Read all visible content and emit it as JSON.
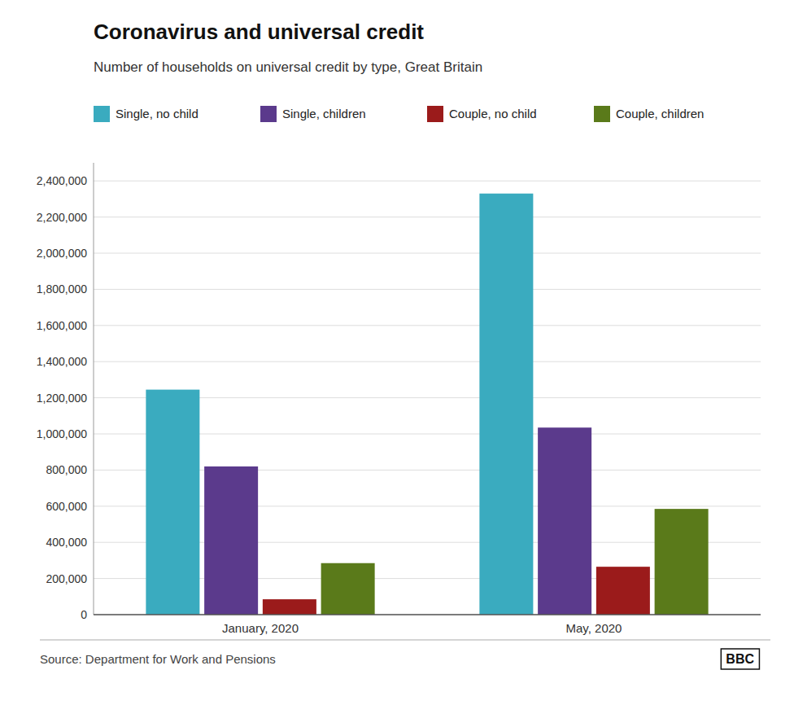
{
  "chart_data": {
    "type": "bar",
    "title": "Coronavirus and universal credit",
    "subtitle": "Number of households on universal credit by type, Great Britain",
    "categories": [
      "January, 2020",
      "May, 2020"
    ],
    "series": [
      {
        "name": "Single, no child",
        "color": "#3aabbf",
        "values": [
          1245000,
          2330000
        ]
      },
      {
        "name": "Single, children",
        "color": "#5b3a8c",
        "values": [
          820000,
          1035000
        ]
      },
      {
        "name": "Couple, no child",
        "color": "#9b1b1b",
        "values": [
          85000,
          265000
        ]
      },
      {
        "name": "Couple, children",
        "color": "#5a7a1a",
        "values": [
          285000,
          585000
        ]
      }
    ],
    "ylim": [
      0,
      2500000
    ],
    "yticks": [
      0,
      {
        "value": 200000,
        "label": "200,000"
      },
      {
        "value": 400000,
        "label": "400,000"
      },
      {
        "value": 600000,
        "label": "600,000"
      },
      {
        "value": 800000,
        "label": "800,000"
      },
      {
        "value": 1000000,
        "label": "1,000,000"
      },
      {
        "value": 1200000,
        "label": "1,200,000"
      },
      {
        "value": 1400000,
        "label": "1,400,000"
      },
      {
        "value": 1600000,
        "label": "1,600,000"
      },
      {
        "value": 1800000,
        "label": "1,800,000"
      },
      {
        "value": 2000000,
        "label": "2,000,000"
      },
      {
        "value": 2200000,
        "label": "2,200,000"
      },
      {
        "value": 2400000,
        "label": "2,400,000"
      }
    ],
    "grid": true,
    "legend": "top",
    "source": "Source: Department for Work and Pensions",
    "annotations": [
      "BBC"
    ]
  }
}
